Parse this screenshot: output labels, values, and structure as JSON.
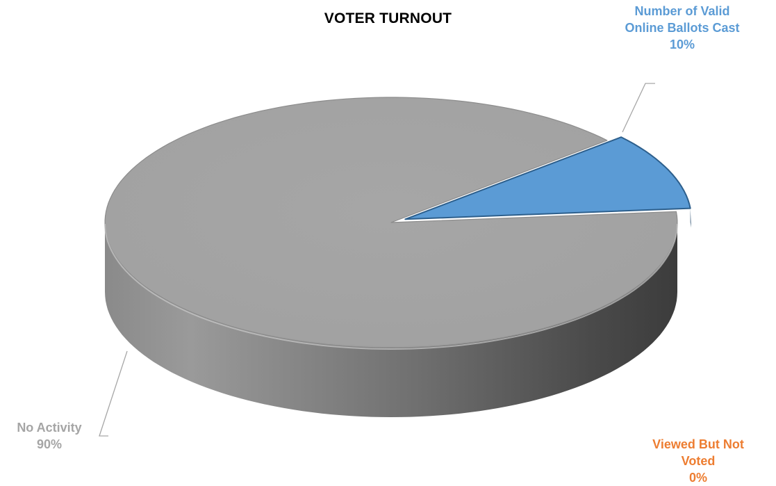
{
  "chart_data": {
    "type": "pie",
    "variant": "3d",
    "title": "VOTER TURNOUT",
    "slices": [
      {
        "name": "Number of Valid Online Ballots Cast",
        "name_lines": [
          "Number of Valid",
          "Online Ballots Cast"
        ],
        "value": 10,
        "label": "10%",
        "color": "#5B9BD5",
        "exploded": true
      },
      {
        "name": "Viewed But Not Voted",
        "name_lines": [
          "Viewed But Not",
          "Voted"
        ],
        "value": 0,
        "label": "0%",
        "color": "#ED7D31",
        "exploded": false
      },
      {
        "name": "No Activity",
        "name_lines": [
          "No Activity"
        ],
        "value": 90,
        "label": "90%",
        "color": "#A5A5A5",
        "exploded": false
      }
    ],
    "unit": "%",
    "legend": "none",
    "data_labels": "outside with leader lines"
  }
}
